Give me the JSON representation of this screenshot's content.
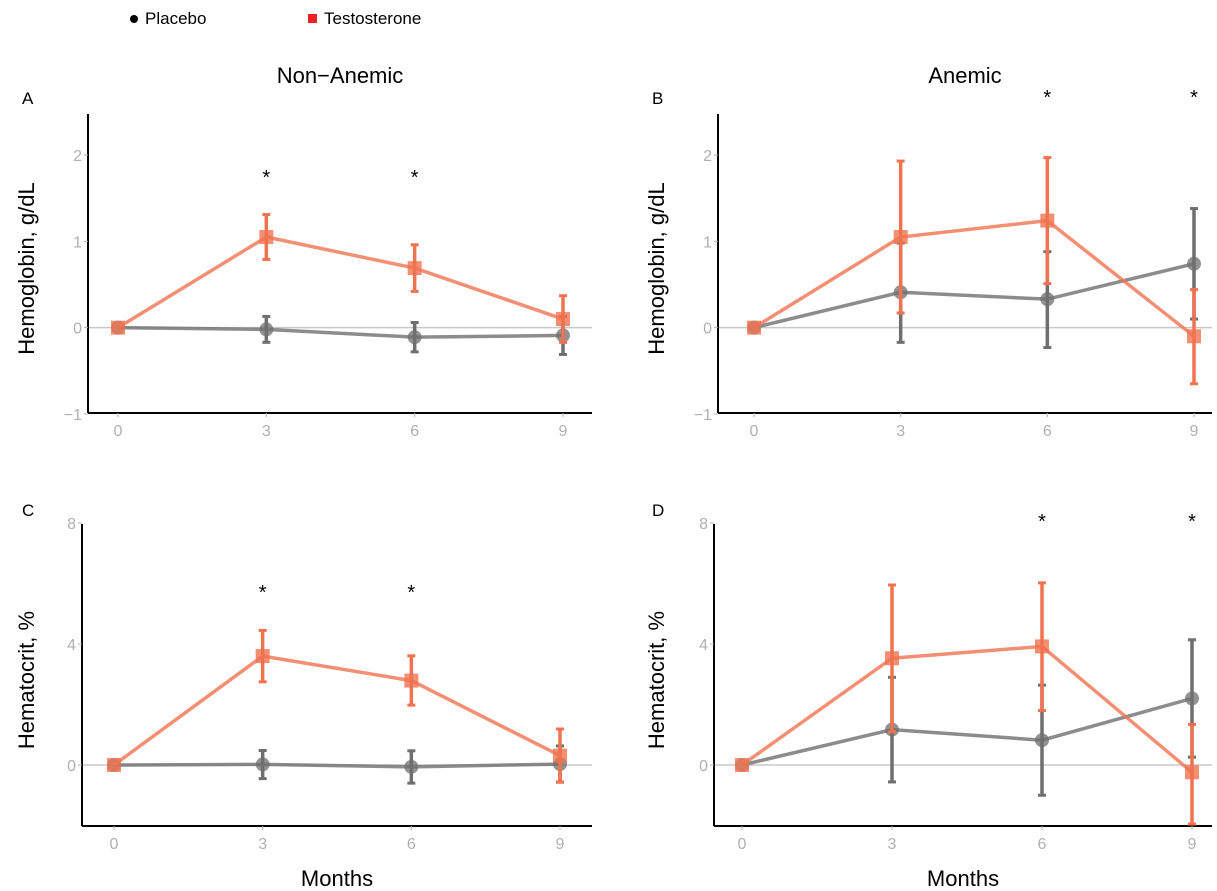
{
  "legend": {
    "placebo": "Placebo",
    "testosterone": "Testosterone"
  },
  "colors": {
    "placebo": "#6f6f6f",
    "testosterone": "#f07350",
    "legend_testosterone": "#ee2222",
    "axis": "#000000",
    "tick_label": "#b0b0b0",
    "zero_line": "#c8c8c8"
  },
  "chart_data": [
    {
      "type": "line",
      "panel": "A",
      "title": "Non−Anemic",
      "xlabel": "",
      "ylabel": "Hemoglobin, g/dL",
      "x": [
        0,
        3,
        6,
        9
      ],
      "xticks": [
        "0",
        "3",
        "6",
        "9"
      ],
      "yticks": [
        "−1",
        "0",
        "1",
        "2"
      ],
      "ylim": [
        -1,
        2.5
      ],
      "series": [
        {
          "name": "Placebo",
          "values": [
            0,
            -0.02,
            -0.11,
            -0.09
          ],
          "lower": [
            0,
            -0.17,
            -0.28,
            -0.31
          ],
          "upper": [
            0,
            0.13,
            0.06,
            0.13
          ]
        },
        {
          "name": "Testosterone",
          "values": [
            0,
            1.05,
            0.69,
            0.1
          ],
          "lower": [
            0,
            0.79,
            0.42,
            -0.17
          ],
          "upper": [
            0,
            1.31,
            0.96,
            0.37
          ]
        }
      ],
      "significance": [
        "",
        "*",
        "*",
        ""
      ]
    },
    {
      "type": "line",
      "panel": "B",
      "title": "Anemic",
      "xlabel": "",
      "ylabel": "Hemoglobin, g/dL",
      "x": [
        0,
        3,
        6,
        9
      ],
      "xticks": [
        "0",
        "3",
        "6",
        "9"
      ],
      "yticks": [
        "−1",
        "0",
        "1",
        "2"
      ],
      "ylim": [
        -1,
        2.5
      ],
      "series": [
        {
          "name": "Placebo",
          "values": [
            0,
            0.41,
            0.33,
            0.74
          ],
          "lower": [
            0,
            -0.17,
            -0.23,
            0.1
          ],
          "upper": [
            0,
            0.98,
            0.88,
            1.38
          ]
        },
        {
          "name": "Testosterone",
          "values": [
            0,
            1.05,
            1.24,
            -0.1
          ],
          "lower": [
            0,
            0.17,
            0.51,
            -0.65
          ],
          "upper": [
            0,
            1.93,
            1.97,
            0.44
          ]
        }
      ],
      "significance": [
        "",
        "",
        "*",
        "*"
      ]
    },
    {
      "type": "line",
      "panel": "C",
      "title": "",
      "xlabel": "Months",
      "ylabel": "Hematocrit, %",
      "x": [
        0,
        3,
        6,
        9
      ],
      "xticks": [
        "0",
        "3",
        "6",
        "9"
      ],
      "yticks": [
        "0",
        "4",
        "8"
      ],
      "ylim": [
        -2,
        8
      ],
      "series": [
        {
          "name": "Placebo",
          "values": [
            0,
            0.02,
            -0.06,
            0.03
          ],
          "lower": [
            0,
            -0.45,
            -0.6,
            -0.56
          ],
          "upper": [
            0,
            0.48,
            0.47,
            0.63
          ]
        },
        {
          "name": "Testosterone",
          "values": [
            0,
            3.6,
            2.79,
            0.31
          ],
          "lower": [
            0,
            2.75,
            1.98,
            -0.57
          ],
          "upper": [
            0,
            4.45,
            3.61,
            1.19
          ]
        }
      ],
      "significance": [
        "",
        "*",
        "*",
        ""
      ]
    },
    {
      "type": "line",
      "panel": "D",
      "title": "",
      "xlabel": "Months",
      "ylabel": "Hematocrit, %",
      "x": [
        0,
        3,
        6,
        9
      ],
      "xticks": [
        "0",
        "3",
        "6",
        "9"
      ],
      "yticks": [
        "0",
        "4",
        "8"
      ],
      "ylim": [
        -2,
        8
      ],
      "series": [
        {
          "name": "Placebo",
          "values": [
            0,
            1.17,
            0.82,
            2.2
          ],
          "lower": [
            0,
            -0.56,
            -1,
            0.26
          ],
          "upper": [
            0,
            2.9,
            2.64,
            4.14
          ]
        },
        {
          "name": "Testosterone",
          "values": [
            0,
            3.53,
            3.92,
            -0.24
          ],
          "lower": [
            0,
            1.1,
            1.8,
            -1.95
          ],
          "upper": [
            0,
            5.95,
            6.02,
            1.34
          ]
        }
      ],
      "significance": [
        "",
        "",
        "*",
        "*"
      ]
    }
  ]
}
